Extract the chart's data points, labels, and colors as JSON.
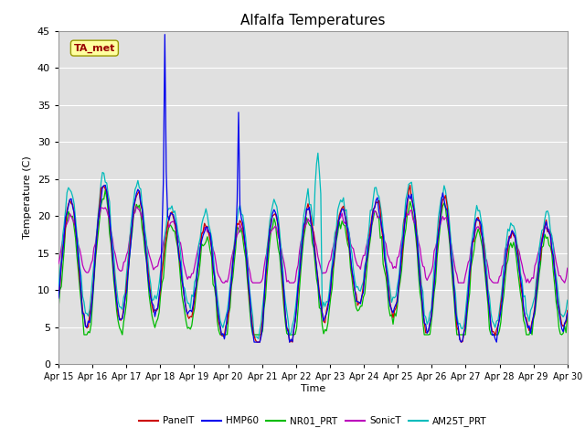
{
  "title": "Alfalfa Temperatures",
  "ylabel": "Temperature (C)",
  "xlabel": "Time",
  "annotation": "TA_met",
  "ylim": [
    0,
    45
  ],
  "colors": {
    "PanelT": "#cc0000",
    "HMP60": "#0000ee",
    "NR01_PRT": "#00bb00",
    "SonicT": "#bb00bb",
    "AM25T_PRT": "#00bbbb"
  },
  "xtick_labels": [
    "Apr 15",
    "Apr 16",
    "Apr 17",
    "Apr 18",
    "Apr 19",
    "Apr 20",
    "Apr 21",
    "Apr 22",
    "Apr 23",
    "Apr 24",
    "Apr 25",
    "Apr 26",
    "Apr 27",
    "Apr 28",
    "Apr 29",
    "Apr 30"
  ],
  "legend_entries": [
    "PanelT",
    "HMP60",
    "NR01_PRT",
    "SonicT",
    "AM25T_PRT"
  ]
}
